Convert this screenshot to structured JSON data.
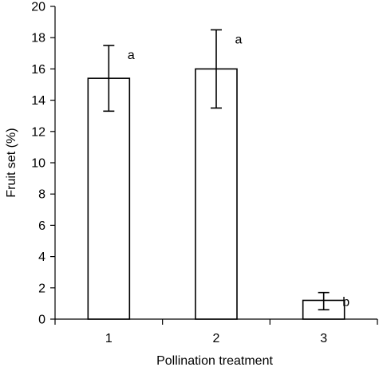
{
  "chart_data": {
    "type": "bar",
    "categories": [
      "1",
      "2",
      "3"
    ],
    "values": [
      15.4,
      16.0,
      1.2
    ],
    "error_low": [
      13.3,
      13.5,
      0.6
    ],
    "error_high": [
      17.5,
      18.5,
      1.7
    ],
    "significance_labels": [
      "a",
      "a",
      "b"
    ],
    "xlabel": "Pollination treatment",
    "ylabel": "Fruit set (%)",
    "ylim": [
      0,
      20
    ],
    "yticks": [
      "0",
      "2",
      "4",
      "6",
      "8",
      "10",
      "12",
      "14",
      "16",
      "18",
      "20"
    ],
    "grid": false,
    "bar_fill": "#ffffff",
    "bar_stroke": "#000000"
  }
}
